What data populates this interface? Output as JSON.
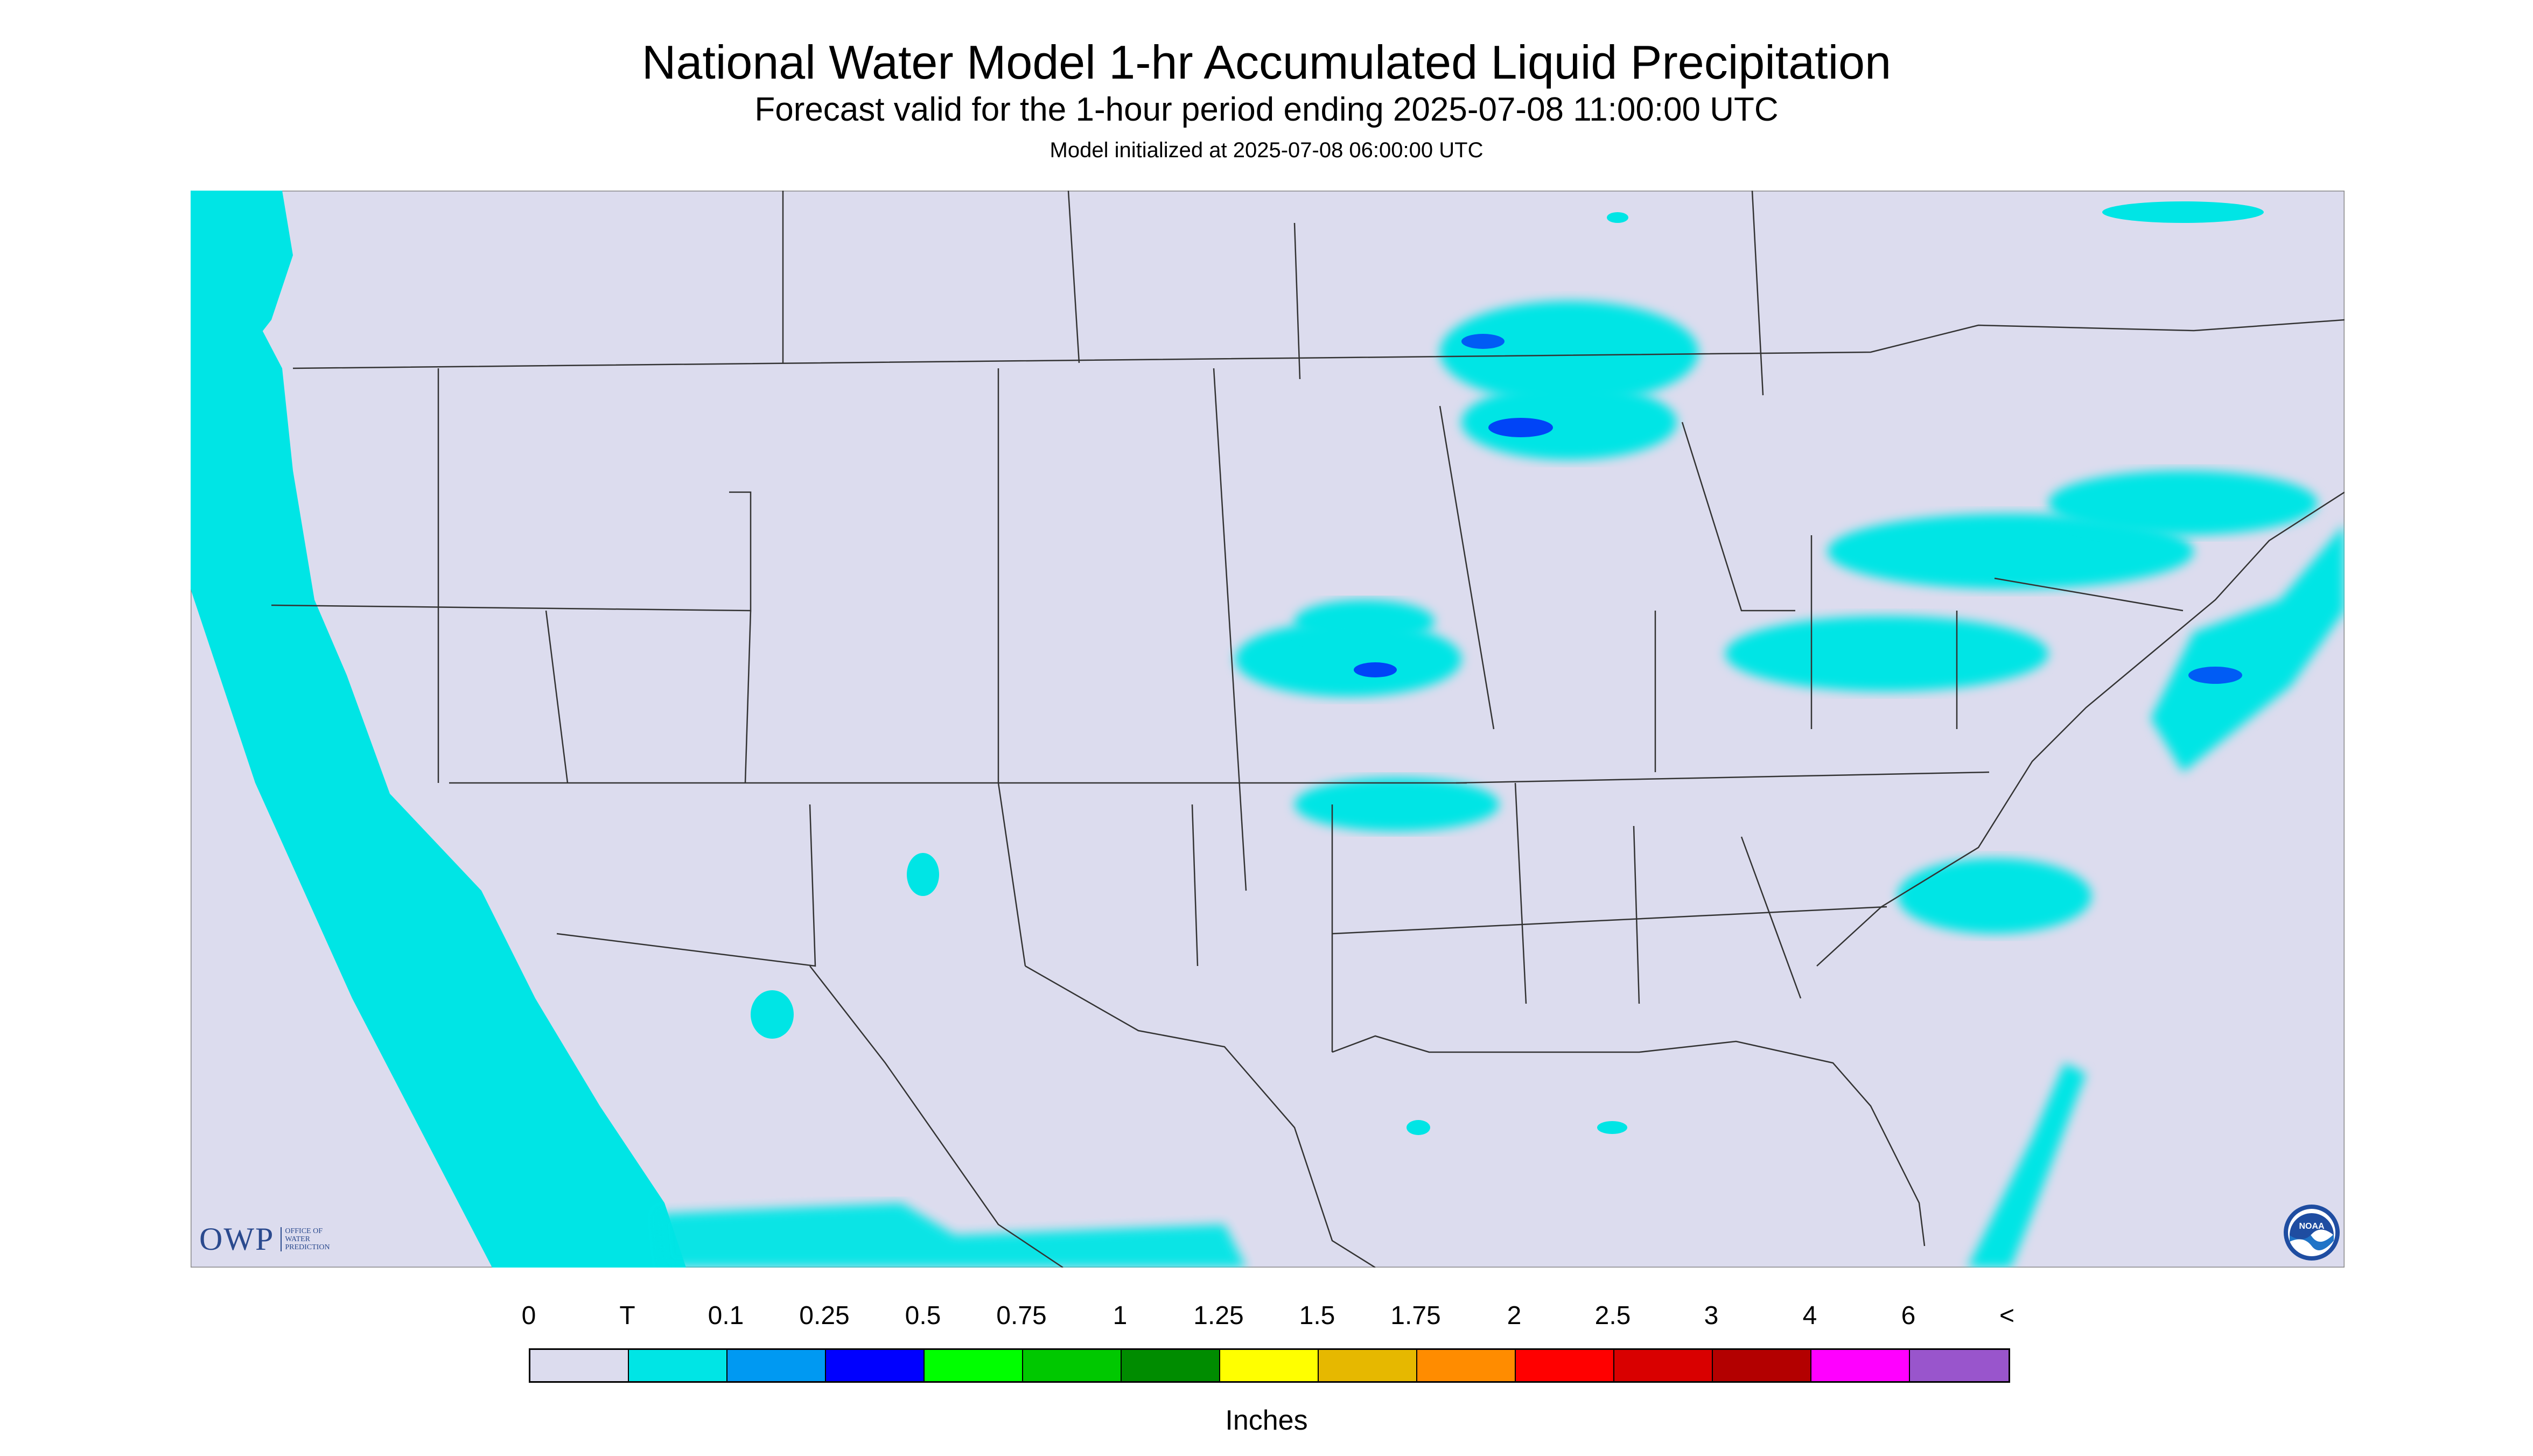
{
  "header": {
    "title": "National Water Model 1-hr Accumulated Liquid Precipitation",
    "subtitle": "Forecast valid for the 1-hour period ending 2025-07-08 11:00:00 UTC",
    "init_line": "Model initialized at 2025-07-08 06:00:00 UTC"
  },
  "map": {
    "region": "Contiguous United States",
    "background_color": "#dcdcee",
    "boundary_color": "#333333",
    "precip_light_color": "#00e5e5",
    "precip_heavy_color": "#0000ff"
  },
  "legend": {
    "labels": [
      "0",
      "T",
      "0.1",
      "0.25",
      "0.5",
      "0.75",
      "1",
      "1.25",
      "1.5",
      "1.75",
      "2",
      "2.5",
      "3",
      "4",
      "6",
      "<"
    ],
    "colors": [
      "#dcdcee",
      "#00e5e5",
      "#0099f2",
      "#0000ff",
      "#00ff00",
      "#00c800",
      "#008c00",
      "#ffff00",
      "#e6b800",
      "#ff8c00",
      "#ff0000",
      "#d90000",
      "#b30000",
      "#ff00ff",
      "#9955cc"
    ],
    "units": "Inches"
  },
  "logos": {
    "owp": {
      "mark": "OWP",
      "text_lines": [
        "OFFICE OF",
        "WATER",
        "PREDICTION"
      ]
    },
    "noaa": {
      "text": "NOAA"
    }
  }
}
